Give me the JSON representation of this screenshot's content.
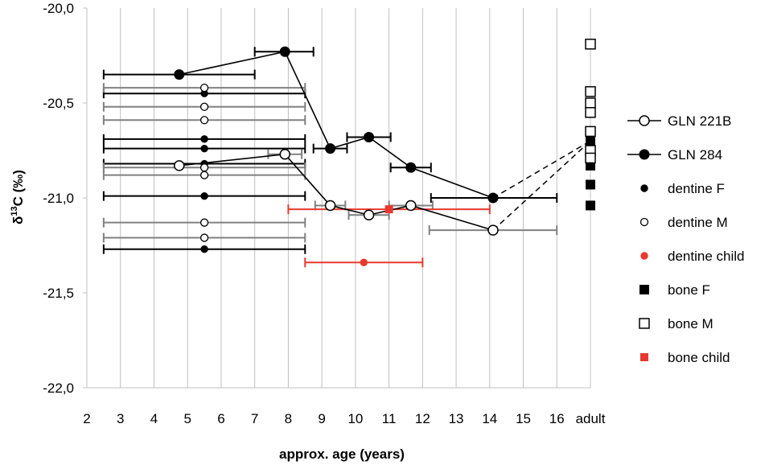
{
  "chart_data": {
    "type": "scatter",
    "title": "",
    "xlabel": "approx. age (years)",
    "ylabel_prefix": "δ",
    "ylabel_sup": "13",
    "ylabel_suffix": "C (‰)",
    "ylim": [
      -22.0,
      -20.0
    ],
    "xlim": [
      2,
      17
    ],
    "x_ticks": [
      {
        "value": 2,
        "label": "2"
      },
      {
        "value": 3,
        "label": "3"
      },
      {
        "value": 4,
        "label": "4"
      },
      {
        "value": 5,
        "label": "5"
      },
      {
        "value": 6,
        "label": "6"
      },
      {
        "value": 7,
        "label": "7"
      },
      {
        "value": 8,
        "label": "8"
      },
      {
        "value": 9,
        "label": "9"
      },
      {
        "value": 10,
        "label": "10"
      },
      {
        "value": 11,
        "label": "11"
      },
      {
        "value": 12,
        "label": "12"
      },
      {
        "value": 13,
        "label": "13"
      },
      {
        "value": 14,
        "label": "14"
      },
      {
        "value": 15,
        "label": "15"
      },
      {
        "value": 16,
        "label": "16"
      },
      {
        "value": 17,
        "label": "adult"
      }
    ],
    "y_ticks": [
      {
        "value": -20.0,
        "label": "-20,0"
      },
      {
        "value": -20.5,
        "label": "-20,5"
      },
      {
        "value": -21.0,
        "label": "-21,0"
      },
      {
        "value": -21.5,
        "label": "-21,5"
      },
      {
        "value": -22.0,
        "label": "-22,0"
      }
    ],
    "grid": "vertical",
    "legend_position": "right",
    "colors": {
      "black": "#000000",
      "red": "#e8392f",
      "grey": "#808080",
      "grid": "#c0c0c0"
    },
    "series": [
      {
        "name": "GLN 221B",
        "marker": "open-circle",
        "line": true,
        "color": "#000000",
        "points": [
          {
            "x": 4.75,
            "y": -20.83
          },
          {
            "x": 7.9,
            "y": -20.77
          },
          {
            "x": 9.25,
            "y": -21.04
          },
          {
            "x": 10.4,
            "y": -21.09
          },
          {
            "x": 11.65,
            "y": -21.04
          },
          {
            "x": 14.1,
            "y": -21.17
          }
        ],
        "xerr": [
          {
            "x": 7.9,
            "y": -20.77,
            "lo": 7.4,
            "hi": 8.4
          },
          {
            "x": 9.25,
            "y": -21.04,
            "lo": 8.8,
            "hi": 9.7
          },
          {
            "x": 10.4,
            "y": -21.09,
            "lo": 9.8,
            "hi": 11.0
          },
          {
            "x": 11.65,
            "y": -21.04,
            "lo": 11.0,
            "hi": 12.3
          },
          {
            "x": 14.1,
            "y": -21.17,
            "lo": 12.2,
            "hi": 16.0
          }
        ],
        "errcolor": "#808080",
        "dashed_to_adult": {
          "from": [
            14.1,
            -21.17
          ],
          "to": [
            17,
            -20.7
          ]
        }
      },
      {
        "name": "GLN 284",
        "marker": "filled-circle",
        "line": true,
        "color": "#000000",
        "points": [
          {
            "x": 4.75,
            "y": -20.35
          },
          {
            "x": 7.9,
            "y": -20.23
          },
          {
            "x": 9.25,
            "y": -20.74
          },
          {
            "x": 10.4,
            "y": -20.68
          },
          {
            "x": 11.65,
            "y": -20.84
          },
          {
            "x": 14.1,
            "y": -21.0
          }
        ],
        "xerr": [
          {
            "x": 4.75,
            "y": -20.35,
            "lo": 2.5,
            "hi": 7.0
          },
          {
            "x": 7.9,
            "y": -20.23,
            "lo": 7.0,
            "hi": 8.75
          },
          {
            "x": 9.25,
            "y": -20.74,
            "lo": 8.75,
            "hi": 9.75
          },
          {
            "x": 10.4,
            "y": -20.68,
            "lo": 9.75,
            "hi": 11.05
          },
          {
            "x": 11.65,
            "y": -20.84,
            "lo": 11.05,
            "hi": 12.25
          },
          {
            "x": 14.1,
            "y": -21.0,
            "lo": 12.25,
            "hi": 16.0
          }
        ],
        "errcolor": "#000000",
        "dashed_to_adult": {
          "from": [
            14.1,
            -21.0
          ],
          "to": [
            17,
            -20.7
          ]
        }
      },
      {
        "name": "dentine F",
        "marker": "small-filled-circle",
        "line": false,
        "color": "#000000",
        "points": [
          {
            "x": 5.5,
            "y": -20.45
          },
          {
            "x": 5.5,
            "y": -20.69
          },
          {
            "x": 5.5,
            "y": -20.74
          },
          {
            "x": 5.5,
            "y": -20.82
          },
          {
            "x": 5.5,
            "y": -20.99
          },
          {
            "x": 5.5,
            "y": -21.27
          }
        ],
        "xerr_range": [
          2.5,
          8.5
        ],
        "errcolor": "#000000"
      },
      {
        "name": "dentine M",
        "marker": "small-open-circle",
        "line": false,
        "color": "#000000",
        "points": [
          {
            "x": 5.5,
            "y": -20.42
          },
          {
            "x": 5.5,
            "y": -20.52
          },
          {
            "x": 5.5,
            "y": -20.59
          },
          {
            "x": 5.5,
            "y": -20.84
          },
          {
            "x": 5.5,
            "y": -20.88
          },
          {
            "x": 5.5,
            "y": -21.13
          },
          {
            "x": 5.5,
            "y": -21.21
          }
        ],
        "xerr_range": [
          2.5,
          8.5
        ],
        "errcolor": "#808080"
      },
      {
        "name": "dentine child",
        "marker": "small-filled-circle",
        "line": false,
        "color": "#e8392f",
        "points": [
          {
            "x": 10.25,
            "y": -21.34
          }
        ],
        "xerr": [
          {
            "x": 10.25,
            "y": -21.34,
            "lo": 8.5,
            "hi": 12.0
          }
        ],
        "errcolor": "#e8392f"
      },
      {
        "name": "bone F",
        "marker": "filled-square",
        "line": false,
        "color": "#000000",
        "points": [
          {
            "x": 17,
            "y": -20.7
          },
          {
            "x": 17,
            "y": -20.83
          },
          {
            "x": 17,
            "y": -20.93
          },
          {
            "x": 17,
            "y": -21.04
          }
        ]
      },
      {
        "name": "bone M",
        "marker": "open-square",
        "line": false,
        "color": "#000000",
        "points": [
          {
            "x": 17,
            "y": -20.19
          },
          {
            "x": 17,
            "y": -20.44
          },
          {
            "x": 17,
            "y": -20.5
          },
          {
            "x": 17,
            "y": -20.55
          },
          {
            "x": 17,
            "y": -20.65
          },
          {
            "x": 17,
            "y": -20.75
          },
          {
            "x": 17,
            "y": -20.79
          }
        ]
      },
      {
        "name": "bone child",
        "marker": "small-filled-square",
        "line": false,
        "color": "#e8392f",
        "points": [
          {
            "x": 11.0,
            "y": -21.06
          }
        ],
        "xerr": [
          {
            "x": 11.0,
            "y": -21.06,
            "lo": 8.0,
            "hi": 14.0
          }
        ],
        "errcolor": "#e8392f"
      }
    ]
  }
}
